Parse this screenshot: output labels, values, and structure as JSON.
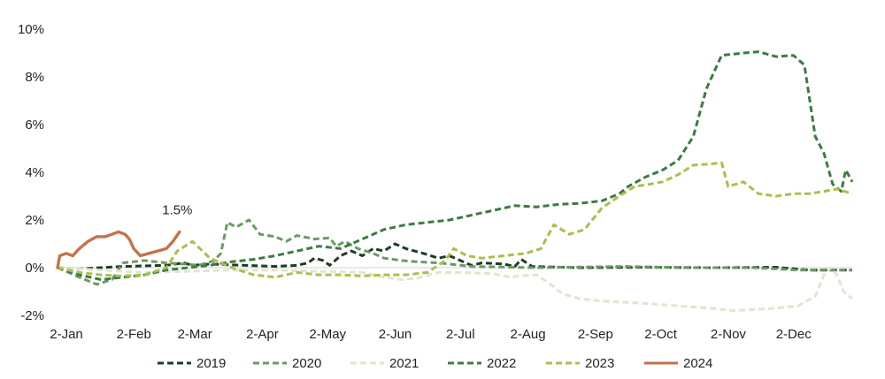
{
  "chart_data": {
    "type": "line",
    "title": "",
    "xlabel": "",
    "ylabel": "",
    "x_unit": "day-of-year",
    "xlim": [
      0,
      365
    ],
    "ylim": [
      -2,
      10
    ],
    "grid": false,
    "legend_position": "bottom",
    "x_ticks": [
      {
        "label": "2-Jan",
        "day": 0
      },
      {
        "label": "2-Feb",
        "day": 31
      },
      {
        "label": "2-Mar",
        "day": 59
      },
      {
        "label": "2-Apr",
        "day": 90
      },
      {
        "label": "2-May",
        "day": 120
      },
      {
        "label": "2-Jun",
        "day": 151
      },
      {
        "label": "2-Jul",
        "day": 181
      },
      {
        "label": "2-Aug",
        "day": 212
      },
      {
        "label": "2-Sep",
        "day": 243
      },
      {
        "label": "2-Oct",
        "day": 273
      },
      {
        "label": "2-Nov",
        "day": 304
      },
      {
        "label": "2-Dec",
        "day": 334
      }
    ],
    "y_ticks": [
      {
        "label": "-2%",
        "value": -2
      },
      {
        "label": "0%",
        "value": 0
      },
      {
        "label": "2%",
        "value": 2
      },
      {
        "label": "4%",
        "value": 4
      },
      {
        "label": "6%",
        "value": 6
      },
      {
        "label": "8%",
        "value": 8
      },
      {
        "label": "10%",
        "value": 10
      }
    ],
    "annotations": [
      {
        "text": "1.5%",
        "day": 55,
        "value": 1.5
      }
    ],
    "series": [
      {
        "name": "2019",
        "color": "#1b3d22",
        "dashed": true,
        "points": [
          [
            0,
            0
          ],
          [
            10,
            -0.05
          ],
          [
            30,
            0.05
          ],
          [
            50,
            0.1
          ],
          [
            58,
            0.2
          ],
          [
            62,
            0.1
          ],
          [
            70,
            0.15
          ],
          [
            85,
            0.1
          ],
          [
            100,
            0.05
          ],
          [
            110,
            0.1
          ],
          [
            115,
            0.2
          ],
          [
            118,
            0.4
          ],
          [
            122,
            0.3
          ],
          [
            125,
            0.1
          ],
          [
            130,
            0.5
          ],
          [
            135,
            0.7
          ],
          [
            140,
            0.5
          ],
          [
            145,
            0.8
          ],
          [
            150,
            0.7
          ],
          [
            155,
            1.0
          ],
          [
            160,
            0.8
          ],
          [
            168,
            0.6
          ],
          [
            175,
            0.4
          ],
          [
            180,
            0.5
          ],
          [
            185,
            0.3
          ],
          [
            190,
            0.1
          ],
          [
            195,
            0.2
          ],
          [
            205,
            0.15
          ],
          [
            210,
            0.05
          ],
          [
            213,
            0.35
          ],
          [
            218,
            0.05
          ],
          [
            240,
            0.0
          ],
          [
            270,
            0.02
          ],
          [
            300,
            0.0
          ],
          [
            330,
            0.02
          ],
          [
            345,
            -0.1
          ],
          [
            365,
            -0.1
          ]
        ]
      },
      {
        "name": "2020",
        "color": "#6b9a64",
        "dashed": true,
        "points": [
          [
            0,
            0
          ],
          [
            5,
            -0.2
          ],
          [
            10,
            -0.4
          ],
          [
            18,
            -0.7
          ],
          [
            25,
            -0.5
          ],
          [
            30,
            0.2
          ],
          [
            40,
            0.3
          ],
          [
            50,
            0.2
          ],
          [
            58,
            0.15
          ],
          [
            65,
            0.1
          ],
          [
            72,
            0.3
          ],
          [
            75,
            0.6
          ],
          [
            78,
            1.9
          ],
          [
            82,
            1.7
          ],
          [
            88,
            2.0
          ],
          [
            93,
            1.4
          ],
          [
            100,
            1.3
          ],
          [
            105,
            1.1
          ],
          [
            110,
            1.35
          ],
          [
            118,
            1.2
          ],
          [
            125,
            1.25
          ],
          [
            128,
            0.9
          ],
          [
            132,
            1.1
          ],
          [
            138,
            0.8
          ],
          [
            145,
            0.6
          ],
          [
            150,
            0.4
          ],
          [
            158,
            0.3
          ],
          [
            165,
            0.25
          ],
          [
            175,
            0.2
          ],
          [
            180,
            0.15
          ],
          [
            190,
            0.05
          ],
          [
            220,
            0.0
          ],
          [
            260,
            0.05
          ],
          [
            290,
            0.0
          ],
          [
            320,
            0.0
          ],
          [
            340,
            -0.1
          ],
          [
            365,
            -0.1
          ]
        ]
      },
      {
        "name": "2021",
        "color": "#dfe6cf",
        "dashed": true,
        "points": [
          [
            0,
            0
          ],
          [
            20,
            -0.1
          ],
          [
            40,
            -0.2
          ],
          [
            60,
            -0.15
          ],
          [
            80,
            -0.1
          ],
          [
            100,
            -0.1
          ],
          [
            120,
            -0.15
          ],
          [
            140,
            -0.2
          ],
          [
            150,
            -0.4
          ],
          [
            158,
            -0.5
          ],
          [
            165,
            -0.45
          ],
          [
            175,
            -0.2
          ],
          [
            185,
            -0.2
          ],
          [
            200,
            -0.25
          ],
          [
            208,
            -0.4
          ],
          [
            212,
            -0.35
          ],
          [
            220,
            -0.3
          ],
          [
            225,
            -0.6
          ],
          [
            232,
            -1.1
          ],
          [
            240,
            -1.3
          ],
          [
            250,
            -1.4
          ],
          [
            260,
            -1.45
          ],
          [
            270,
            -1.5
          ],
          [
            285,
            -1.6
          ],
          [
            300,
            -1.7
          ],
          [
            310,
            -1.8
          ],
          [
            320,
            -1.75
          ],
          [
            330,
            -1.7
          ],
          [
            340,
            -1.6
          ],
          [
            348,
            -1.2
          ],
          [
            352,
            -0.3
          ],
          [
            355,
            0.0
          ],
          [
            358,
            -0.3
          ],
          [
            361,
            -1.0
          ],
          [
            365,
            -1.3
          ]
        ]
      },
      {
        "name": "2022",
        "color": "#3d7a42",
        "dashed": true,
        "points": [
          [
            0,
            0
          ],
          [
            10,
            -0.3
          ],
          [
            20,
            -0.5
          ],
          [
            30,
            -0.4
          ],
          [
            40,
            -0.3
          ],
          [
            50,
            -0.1
          ],
          [
            60,
            0.0
          ],
          [
            70,
            0.1
          ],
          [
            80,
            0.25
          ],
          [
            90,
            0.35
          ],
          [
            100,
            0.5
          ],
          [
            110,
            0.7
          ],
          [
            120,
            0.9
          ],
          [
            130,
            0.8
          ],
          [
            140,
            1.2
          ],
          [
            150,
            1.6
          ],
          [
            160,
            1.8
          ],
          [
            170,
            1.9
          ],
          [
            180,
            2.0
          ],
          [
            190,
            2.2
          ],
          [
            200,
            2.4
          ],
          [
            210,
            2.6
          ],
          [
            220,
            2.55
          ],
          [
            230,
            2.65
          ],
          [
            240,
            2.7
          ],
          [
            250,
            2.8
          ],
          [
            258,
            3.1
          ],
          [
            262,
            3.4
          ],
          [
            270,
            3.8
          ],
          [
            278,
            4.1
          ],
          [
            285,
            4.5
          ],
          [
            292,
            5.5
          ],
          [
            298,
            7.5
          ],
          [
            305,
            8.9
          ],
          [
            315,
            9.0
          ],
          [
            322,
            9.05
          ],
          [
            330,
            8.85
          ],
          [
            338,
            8.9
          ],
          [
            343,
            8.5
          ],
          [
            348,
            5.5
          ],
          [
            352,
            4.8
          ],
          [
            356,
            3.5
          ],
          [
            360,
            3.2
          ],
          [
            362,
            4.1
          ],
          [
            365,
            3.6
          ]
        ]
      },
      {
        "name": "2023",
        "color": "#a8c04b",
        "dashed": true,
        "points": [
          [
            0,
            0
          ],
          [
            10,
            -0.2
          ],
          [
            20,
            -0.3
          ],
          [
            30,
            -0.35
          ],
          [
            40,
            -0.3
          ],
          [
            50,
            0.0
          ],
          [
            55,
            0.7
          ],
          [
            62,
            1.1
          ],
          [
            70,
            0.4
          ],
          [
            80,
            0.0
          ],
          [
            90,
            -0.3
          ],
          [
            100,
            -0.4
          ],
          [
            110,
            -0.2
          ],
          [
            120,
            -0.3
          ],
          [
            130,
            -0.3
          ],
          [
            140,
            -0.35
          ],
          [
            150,
            -0.3
          ],
          [
            160,
            -0.3
          ],
          [
            170,
            -0.2
          ],
          [
            178,
            0.3
          ],
          [
            182,
            0.8
          ],
          [
            188,
            0.5
          ],
          [
            195,
            0.4
          ],
          [
            205,
            0.5
          ],
          [
            215,
            0.6
          ],
          [
            222,
            0.8
          ],
          [
            228,
            1.8
          ],
          [
            235,
            1.4
          ],
          [
            242,
            1.6
          ],
          [
            250,
            2.5
          ],
          [
            258,
            3.0
          ],
          [
            265,
            3.4
          ],
          [
            272,
            3.5
          ],
          [
            278,
            3.6
          ],
          [
            285,
            3.9
          ],
          [
            292,
            4.3
          ],
          [
            300,
            4.35
          ],
          [
            305,
            4.4
          ],
          [
            308,
            3.4
          ],
          [
            315,
            3.6
          ],
          [
            322,
            3.1
          ],
          [
            330,
            3.0
          ],
          [
            338,
            3.1
          ],
          [
            345,
            3.1
          ],
          [
            352,
            3.2
          ],
          [
            358,
            3.3
          ],
          [
            365,
            3.1
          ]
        ]
      },
      {
        "name": "2024",
        "color": "#c5714a",
        "dashed": false,
        "points": [
          [
            0,
            0
          ],
          [
            1,
            0.5
          ],
          [
            4,
            0.6
          ],
          [
            7,
            0.5
          ],
          [
            10,
            0.8
          ],
          [
            14,
            1.1
          ],
          [
            18,
            1.3
          ],
          [
            22,
            1.3
          ],
          [
            25,
            1.4
          ],
          [
            28,
            1.5
          ],
          [
            31,
            1.4
          ],
          [
            33,
            1.2
          ],
          [
            35,
            0.8
          ],
          [
            38,
            0.5
          ],
          [
            42,
            0.6
          ],
          [
            46,
            0.7
          ],
          [
            50,
            0.8
          ],
          [
            53,
            1.1
          ],
          [
            56,
            1.5
          ]
        ]
      }
    ]
  }
}
